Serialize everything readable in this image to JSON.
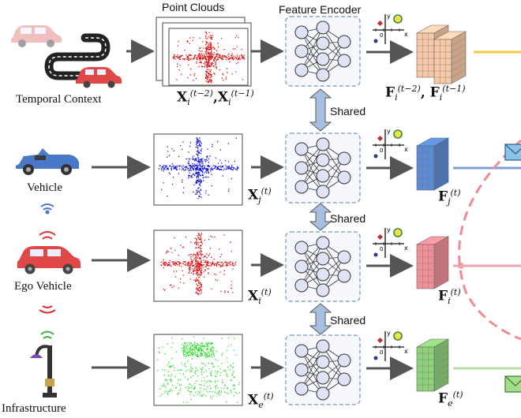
{
  "section_titles": {
    "point_clouds": "Point Clouds",
    "feature_encoder": "Feature Encoder"
  },
  "agents": {
    "temporal": "Temporal Context",
    "vehicle": "Vehicle",
    "ego": "Ego Vehicle",
    "infra": "Infrastructure"
  },
  "shared_label": "Shared",
  "symbols": {
    "bold_x": "X",
    "bold_f": "F",
    "sub_i": "i",
    "sub_j": "j",
    "sub_e": "e",
    "sup_t": "(t)",
    "sup_t2": "(t−2)",
    "sup_t1": "(t−1)",
    "comma": ","
  },
  "mini_axis": {
    "x": "x",
    "y": "y",
    "origin": "0"
  },
  "colors": {
    "temporal_cube": "#f6c8a6",
    "vehicle_cube": "#5b8ad6",
    "ego_cube": "#ef8f97",
    "infra_cube": "#8fd07b",
    "vehicle_points": "#1010e0",
    "ego_points": "#e01010",
    "infra_points": "#22dd22",
    "encoder_node": "#dfe3f6",
    "encoder_box": "#8aa6cc",
    "shared_arrow": "#a9bfe0"
  },
  "icons": [
    "car-icon",
    "road-icon",
    "convertible-icon",
    "wifi-icon",
    "streetlight-icon",
    "envelope-icon"
  ]
}
